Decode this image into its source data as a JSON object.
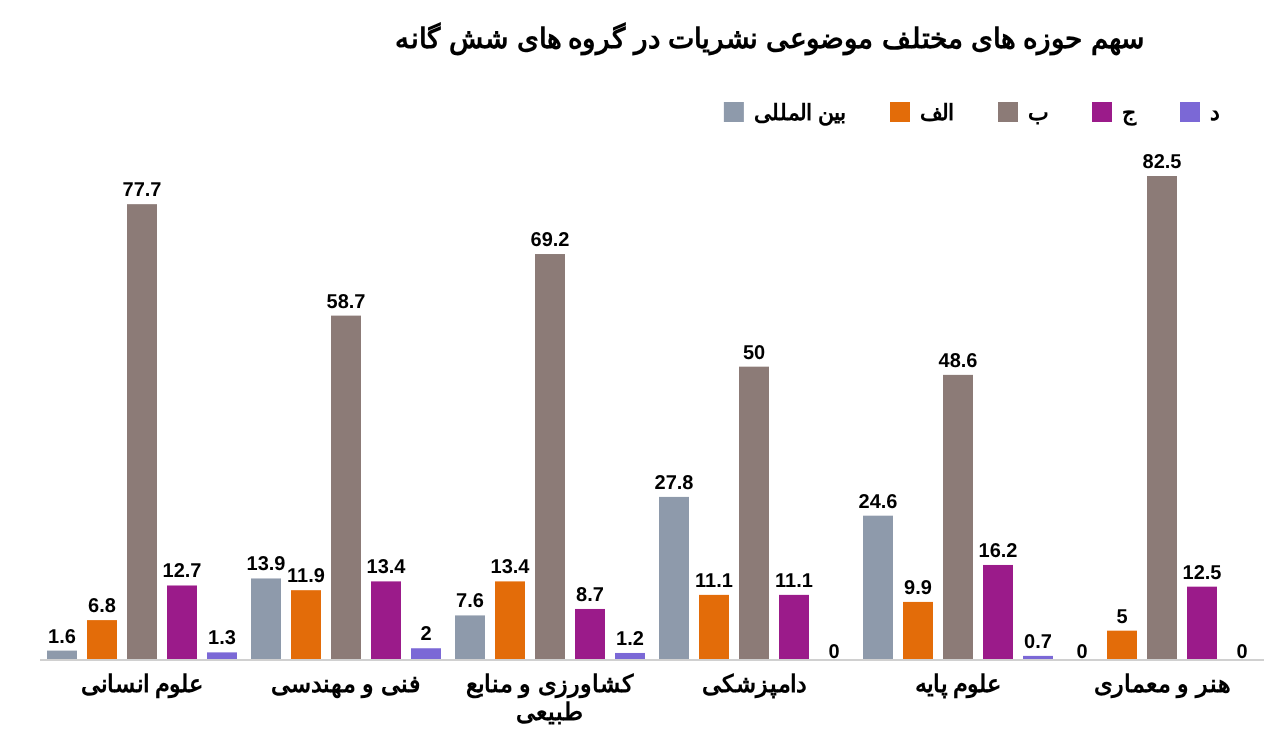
{
  "chart_data": {
    "type": "bar",
    "title": "سهم حوزه های مختلف موضوعی نشریات در گروه های شش گانه",
    "categories": [
      "علوم انسانی",
      "فنی و مهندسی",
      "کشاورزی و منابع طبیعی",
      "دامپزشکی",
      "علوم پایه",
      "هنر و معماری"
    ],
    "series": [
      {
        "name": "بین المللی",
        "color": "#8e9aab",
        "values": [
          1.6,
          13.9,
          7.6,
          27.8,
          24.6,
          0
        ]
      },
      {
        "name": "الف",
        "color": "#e36c09",
        "values": [
          6.8,
          11.9,
          13.4,
          11.1,
          9.9,
          5
        ]
      },
      {
        "name": "ب",
        "color": "#8c7b77",
        "values": [
          77.7,
          58.7,
          69.2,
          50,
          48.6,
          82.5
        ]
      },
      {
        "name": "ج",
        "color": "#9b1b8a",
        "values": [
          12.7,
          13.4,
          8.7,
          11.1,
          16.2,
          12.5
        ]
      },
      {
        "name": "د",
        "color": "#7b68d6",
        "values": [
          1.3,
          2,
          1.2,
          0,
          0.7,
          0
        ]
      }
    ],
    "data_labels": true,
    "legend": "top right",
    "grid": false
  }
}
